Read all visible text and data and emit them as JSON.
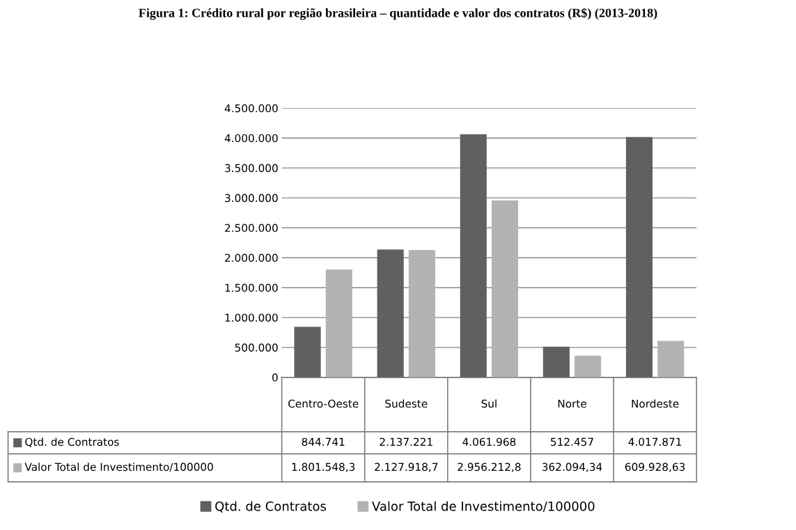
{
  "chart_data": {
    "type": "bar",
    "title": "Figura 1: Crédito rural por região brasileira – quantidade e valor dos contratos (R$) (2013-2018)",
    "categories": [
      "Centro-Oeste",
      "Sudeste",
      "Sul",
      "Norte",
      "Nordeste"
    ],
    "series": [
      {
        "name": "Qtd. de Contratos",
        "color": "#606060",
        "values": [
          844741,
          2137221,
          4061968,
          512457,
          4017871
        ],
        "value_labels": [
          "844.741",
          "2.137.221",
          "4.061.968",
          "512.457",
          "4.017.871"
        ]
      },
      {
        "name": "Valor Total de Investimento/100000",
        "color": "#b3b3b3",
        "values": [
          1801548.3,
          2127918.7,
          2956212.8,
          362094.34,
          609928.63
        ],
        "value_labels": [
          "1.801.548,3",
          "2.127.918,7",
          "2.956.212,8",
          "362.094,34",
          "609.928,63"
        ]
      }
    ],
    "ylim": [
      0,
      4500000
    ],
    "yticks": [
      0,
      {
        "value": 500000,
        "label": "500.000"
      },
      {
        "value": 1000000,
        "label": "1.000.000"
      },
      {
        "value": 1500000,
        "label": "1.500.000"
      },
      {
        "value": 2000000,
        "label": "2.000.000"
      },
      {
        "value": 2500000,
        "label": "2.500.000"
      },
      {
        "value": 3000000,
        "label": "3.000.000"
      },
      {
        "value": 3500000,
        "label": "3.500.000"
      },
      {
        "value": 4000000,
        "label": "4.000.000"
      },
      {
        "value": 4500000,
        "label": "4.500.000"
      }
    ],
    "grid": "y",
    "legend": "bottom"
  }
}
